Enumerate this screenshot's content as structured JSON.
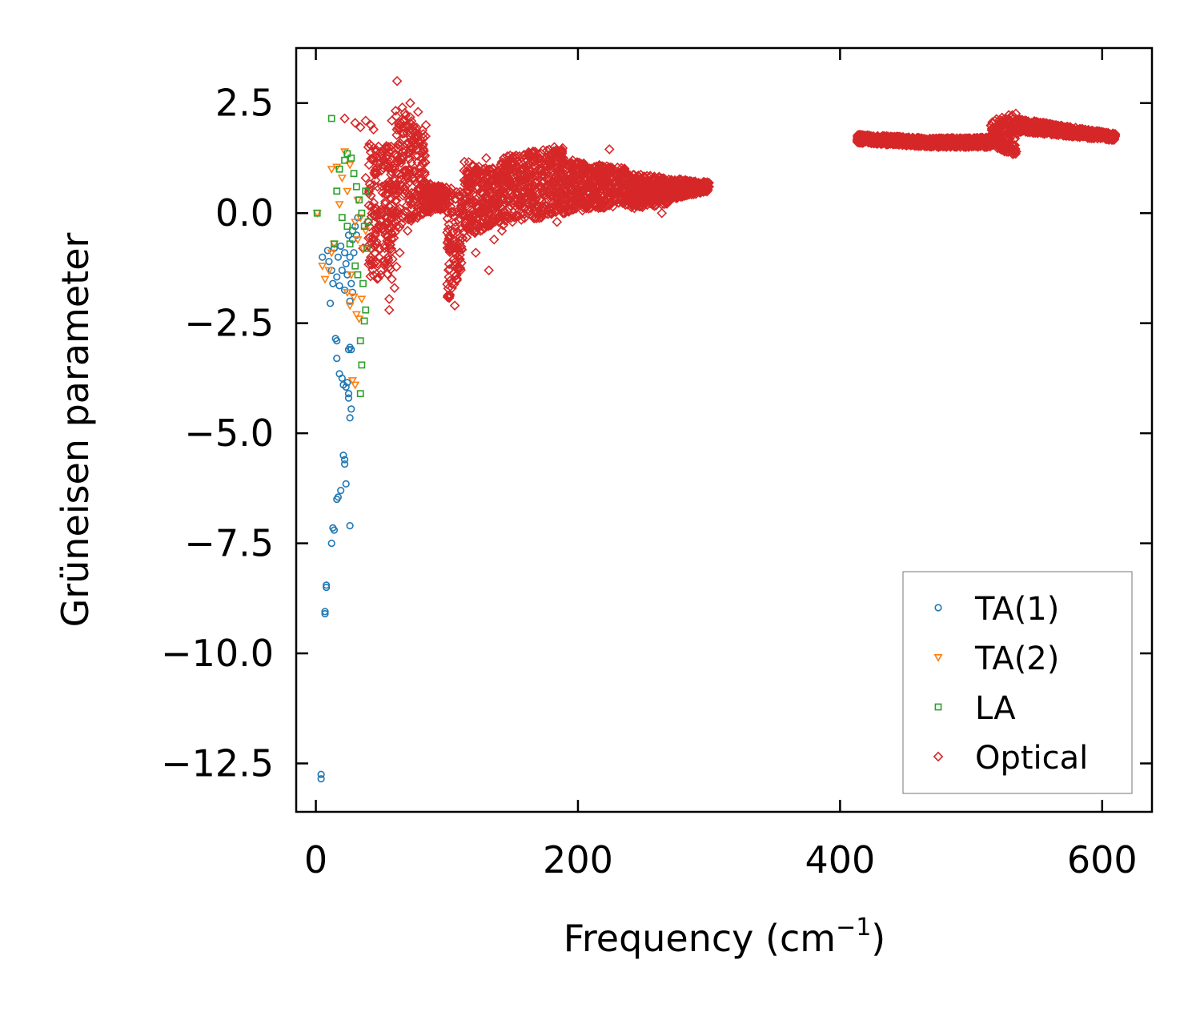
{
  "chart_data": {
    "type": "scatter",
    "title": "",
    "xlabel": "Frequency (cm",
    "xlabel_sup": "−1",
    "xlabel_close": ")",
    "ylabel": "Grüneisen parameter",
    "xlim": [
      -15,
      638
    ],
    "ylim": [
      -13.6,
      3.75
    ],
    "xticks": [
      0,
      200,
      400,
      600
    ],
    "xtick_labels": [
      "0",
      "200",
      "400",
      "600"
    ],
    "yticks": [
      2.5,
      0.0,
      -2.5,
      -5.0,
      -7.5,
      -10.0,
      -12.5
    ],
    "ytick_labels": [
      "2.5",
      "0.0",
      "−2.5",
      "−5.0",
      "−7.5",
      "−10.0",
      "−12.5"
    ],
    "grid": false,
    "legend_position": "lower-right",
    "series": [
      {
        "name": "TA(1)",
        "marker": "circle",
        "color": "#1f77b4",
        "points": [
          [
            4,
            -12.75
          ],
          [
            4,
            -12.85
          ],
          [
            7,
            -9.05
          ],
          [
            7,
            -9.1
          ],
          [
            8,
            -8.45
          ],
          [
            8,
            -8.5
          ],
          [
            12,
            -7.5
          ],
          [
            13,
            -7.15
          ],
          [
            14,
            -7.2
          ],
          [
            26,
            -7.1
          ],
          [
            16,
            -6.5
          ],
          [
            17,
            -6.45
          ],
          [
            19,
            -6.3
          ],
          [
            23,
            -6.15
          ],
          [
            21,
            -5.5
          ],
          [
            22,
            -5.6
          ],
          [
            22,
            -5.7
          ],
          [
            26,
            -4.65
          ],
          [
            27,
            -4.45
          ],
          [
            25,
            -4.2
          ],
          [
            25,
            -4.1
          ],
          [
            23,
            -3.95
          ],
          [
            21,
            -3.9
          ],
          [
            24,
            -3.85
          ],
          [
            20,
            -3.75
          ],
          [
            18,
            -3.65
          ],
          [
            27,
            -3.1
          ],
          [
            26,
            -3.05
          ],
          [
            25,
            -3.1
          ],
          [
            16,
            -3.3
          ],
          [
            15,
            -2.85
          ],
          [
            16,
            -2.9
          ],
          [
            11,
            -2.05
          ],
          [
            22,
            -1.75
          ],
          [
            18,
            -1.65
          ],
          [
            16,
            -1.45
          ],
          [
            13,
            -1.6
          ],
          [
            9,
            -0.85
          ],
          [
            5,
            -1.0
          ],
          [
            10,
            -1.1
          ],
          [
            12,
            -1.3
          ],
          [
            20,
            -1.3
          ],
          [
            24,
            -1.4
          ],
          [
            26,
            -1.0
          ],
          [
            28,
            -0.6
          ],
          [
            30,
            -0.3
          ],
          [
            32,
            -0.1
          ],
          [
            22,
            -0.9
          ],
          [
            25,
            -0.5
          ],
          [
            27,
            -1.6
          ],
          [
            29,
            -0.9
          ],
          [
            31,
            -0.5
          ],
          [
            14,
            -0.8
          ],
          [
            17,
            -1.0
          ],
          [
            19,
            -0.75
          ],
          [
            23,
            -1.15
          ],
          [
            26,
            -2.0
          ],
          [
            28,
            -1.8
          ]
        ]
      },
      {
        "name": "TA(2)",
        "marker": "triangle-down",
        "color": "#ff7f0e",
        "points": [
          [
            1,
            0.0
          ],
          [
            5,
            -1.2
          ],
          [
            7,
            -1.5
          ],
          [
            10,
            -1.3
          ],
          [
            12,
            -0.9
          ],
          [
            14,
            -0.7
          ],
          [
            12,
            1.0
          ],
          [
            16,
            1.05
          ],
          [
            22,
            1.4
          ],
          [
            26,
            1.1
          ],
          [
            24,
            0.5
          ],
          [
            20,
            0.8
          ],
          [
            18,
            0.2
          ],
          [
            30,
            -0.2
          ],
          [
            32,
            -0.6
          ],
          [
            27,
            -1.4
          ],
          [
            29,
            -1.9
          ],
          [
            31,
            -2.3
          ],
          [
            33,
            -2.4
          ],
          [
            35,
            -1.95
          ],
          [
            28,
            -3.8
          ],
          [
            30,
            -3.9
          ],
          [
            26,
            -2.1
          ],
          [
            24,
            -1.8
          ],
          [
            32,
            0.3
          ],
          [
            34,
            -0.1
          ],
          [
            36,
            -0.8
          ],
          [
            38,
            -0.4
          ]
        ]
      },
      {
        "name": "LA",
        "marker": "square",
        "color": "#2ca02c",
        "points": [
          [
            1,
            0.0
          ],
          [
            12,
            2.15
          ],
          [
            18,
            1.0
          ],
          [
            22,
            1.2
          ],
          [
            24,
            1.35
          ],
          [
            27,
            1.25
          ],
          [
            29,
            0.9
          ],
          [
            31,
            0.6
          ],
          [
            33,
            0.3
          ],
          [
            35,
            0.0
          ],
          [
            37,
            -0.3
          ],
          [
            39,
            -0.8
          ],
          [
            36,
            -1.6
          ],
          [
            38,
            -2.2
          ],
          [
            37,
            -2.45
          ],
          [
            34,
            -2.9
          ],
          [
            35,
            -3.45
          ],
          [
            34,
            -4.1
          ],
          [
            30,
            -1.2
          ],
          [
            28,
            -0.4
          ],
          [
            26,
            -0.7
          ],
          [
            32,
            -1.4
          ],
          [
            38,
            0.5
          ],
          [
            40,
            -0.2
          ],
          [
            16,
            0.5
          ],
          [
            20,
            -0.1
          ],
          [
            14,
            -0.7
          ],
          [
            24,
            -0.3
          ]
        ]
      },
      {
        "name": "Optical",
        "marker": "diamond",
        "color": "#d62728",
        "points": [
          [
            62,
            3.0
          ],
          [
            22,
            2.15
          ],
          [
            30,
            2.05
          ],
          [
            34,
            1.95
          ],
          [
            38,
            2.1
          ],
          [
            42,
            2.0
          ],
          [
            44,
            1.9
          ],
          [
            40,
            1.5
          ],
          [
            46,
            1.4
          ],
          [
            38,
            0.8
          ],
          [
            42,
            0.4
          ],
          [
            40,
            -0.2
          ],
          [
            44,
            -0.6
          ],
          [
            36,
            -0.8
          ],
          [
            48,
            -1.0
          ],
          [
            58,
            -1.5
          ],
          [
            56,
            -1.95
          ],
          [
            56,
            -2.2
          ],
          [
            60,
            -1.7
          ],
          [
            46,
            0.9
          ],
          [
            52,
            1.2
          ],
          [
            58,
            2.1
          ],
          [
            66,
            2.4
          ],
          [
            72,
            2.5
          ],
          [
            78,
            2.3
          ],
          [
            84,
            2.0
          ],
          [
            70,
            -0.4
          ],
          [
            64,
            -0.9
          ],
          [
            90,
            0.4
          ],
          [
            100,
            0.2
          ],
          [
            106,
            -1.2
          ],
          [
            104,
            -1.6
          ],
          [
            106,
            -2.1
          ],
          [
            114,
            -0.2
          ],
          [
            122,
            -0.9
          ],
          [
            132,
            -1.3
          ],
          [
            136,
            -0.6
          ],
          [
            142,
            -0.4
          ],
          [
            150,
            -0.2
          ],
          [
            172,
            -0.1
          ],
          [
            184,
            -0.2
          ],
          [
            190,
            0.0
          ],
          [
            130,
            1.25
          ],
          [
            156,
            1.0
          ],
          [
            182,
            1.5
          ],
          [
            196,
            1.2
          ],
          [
            224,
            1.45
          ],
          [
            230,
            0.9
          ],
          [
            252,
            0.6
          ],
          [
            266,
            0.7
          ],
          [
            276,
            0.5
          ],
          [
            290,
            0.6
          ],
          [
            298,
            0.65
          ],
          [
            264,
            0.0
          ]
        ]
      }
    ],
    "optical_bands": [
      {
        "x0": 40,
        "x1": 62,
        "ylo0": -1.6,
        "yhi0": 1.6,
        "ylo1": -1.3,
        "yhi1": 1.5
      },
      {
        "x0": 60,
        "x1": 84,
        "ylo0": -0.4,
        "yhi0": 2.6,
        "ylo1": 0.0,
        "yhi1": 1.8
      },
      {
        "x0": 84,
        "x1": 100,
        "ylo0": 0.0,
        "yhi0": 0.7,
        "ylo1": 0.1,
        "yhi1": 0.6
      },
      {
        "x0": 100,
        "x1": 112,
        "ylo0": -2.1,
        "yhi0": 0.6,
        "ylo1": -1.2,
        "yhi1": 0.5
      },
      {
        "x0": 112,
        "x1": 140,
        "ylo0": -0.6,
        "yhi0": 1.2,
        "ylo1": -0.2,
        "yhi1": 1.0
      },
      {
        "x0": 140,
        "x1": 190,
        "ylo0": -0.3,
        "yhi0": 1.3,
        "ylo1": 0.0,
        "yhi1": 1.5
      },
      {
        "x0": 190,
        "x1": 240,
        "ylo0": 0.0,
        "yhi0": 1.2,
        "ylo1": 0.2,
        "yhi1": 1.0
      },
      {
        "x0": 240,
        "x1": 270,
        "ylo0": 0.1,
        "yhi0": 0.9,
        "ylo1": 0.2,
        "yhi1": 0.8
      },
      {
        "x0": 270,
        "x1": 300,
        "ylo0": 0.3,
        "yhi0": 0.8,
        "ylo1": 0.5,
        "yhi1": 0.7
      },
      {
        "x0": 413,
        "x1": 470,
        "ylo0": 1.6,
        "yhi0": 1.78,
        "ylo1": 1.5,
        "yhi1": 1.7
      },
      {
        "x0": 470,
        "x1": 515,
        "ylo0": 1.5,
        "yhi0": 1.7,
        "ylo1": 1.5,
        "yhi1": 1.72
      },
      {
        "x0": 515,
        "x1": 535,
        "ylo0": 1.5,
        "yhi0": 2.1,
        "ylo1": 1.3,
        "yhi1": 2.3
      },
      {
        "x0": 535,
        "x1": 610,
        "ylo0": 1.85,
        "yhi0": 2.15,
        "ylo1": 1.65,
        "yhi1": 1.8
      }
    ],
    "legend_entries": [
      "TA(1)",
      "TA(2)",
      "LA",
      "Optical"
    ]
  }
}
